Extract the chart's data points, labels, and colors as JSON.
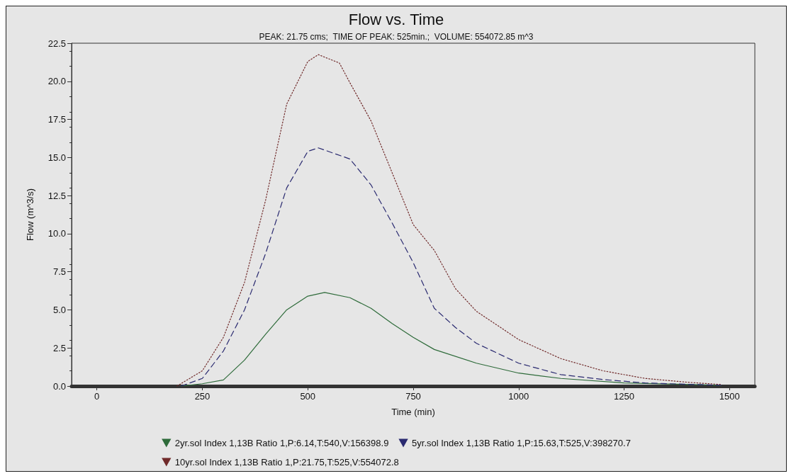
{
  "chart_data": {
    "type": "line",
    "title": "Flow vs. Time",
    "subtitle": "PEAK: 21.75 cms;  TIME OF PEAK: 525min.;  VOLUME: 554072.85 m^3",
    "xlabel": "Time (min)",
    "ylabel": "Flow (m^3/s)",
    "xlim": [
      -60,
      1560
    ],
    "xticks": [
      0,
      250,
      500,
      750,
      1000,
      1250,
      1500
    ],
    "ylim": [
      0,
      22.5
    ],
    "yticks": [
      {
        "value": 0,
        "label": "0.0"
      },
      2.5,
      {
        "value": 5,
        "label": "5.0"
      },
      7.5,
      {
        "value": 10,
        "label": "10.0"
      },
      12.5,
      {
        "value": 15,
        "label": "15.0"
      },
      17.5,
      {
        "value": 20,
        "label": "20.0"
      },
      22.5
    ],
    "grid": false,
    "legend": "bottom",
    "marker": "none",
    "series": [
      {
        "name": "2yr.sol Index 1,13B Ratio 1,P:6.14,T:540,V:156398.9",
        "color": "#2e6b3a",
        "line_style": "solid",
        "x": [
          200,
          250,
          300,
          350,
          400,
          450,
          500,
          540,
          600,
          650,
          700,
          750,
          800,
          900,
          1000,
          1100,
          1250,
          1480
        ],
        "values": [
          0,
          0.15,
          0.4,
          1.7,
          3.4,
          5.0,
          5.9,
          6.14,
          5.8,
          5.1,
          4.1,
          3.2,
          2.4,
          1.5,
          0.85,
          0.5,
          0.2,
          0.05
        ]
      },
      {
        "name": "5yr.sol Index 1,13B Ratio 1,P:15.63,T:525,V:398270.7",
        "color": "#2a2a70",
        "line_style": "dashed",
        "x": [
          200,
          250,
          300,
          350,
          400,
          450,
          500,
          525,
          600,
          650,
          700,
          750,
          800,
          850,
          900,
          1000,
          1100,
          1200,
          1300,
          1480
        ],
        "values": [
          0,
          0.5,
          2.3,
          5.0,
          8.7,
          13.0,
          15.4,
          15.63,
          14.9,
          13.2,
          10.7,
          8.1,
          5.1,
          3.85,
          2.8,
          1.5,
          0.75,
          0.43,
          0.2,
          0.05
        ]
      },
      {
        "name": "10yr.sol Index 1,13B Ratio 1,P:21.75,T:525,V:554072.8",
        "color": "#702a2a",
        "line_style": "dotted",
        "x": [
          190,
          250,
          300,
          350,
          400,
          450,
          500,
          525,
          575,
          600,
          650,
          700,
          750,
          800,
          850,
          900,
          1000,
          1100,
          1200,
          1300,
          1400,
          1480
        ],
        "values": [
          0,
          1.0,
          3.2,
          6.8,
          12.2,
          18.5,
          21.3,
          21.75,
          21.2,
          19.9,
          17.4,
          14.0,
          10.6,
          8.9,
          6.4,
          4.9,
          3.05,
          1.8,
          1.0,
          0.5,
          0.25,
          0.1
        ]
      }
    ]
  }
}
